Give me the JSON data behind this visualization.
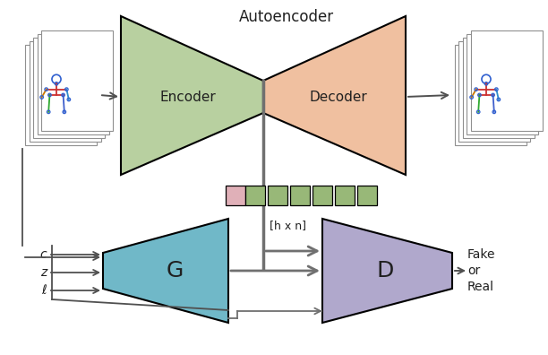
{
  "bg_color": "#ffffff",
  "autoencoder_label": "Autoencoder",
  "encoder_label": "Encoder",
  "decoder_label": "Decoder",
  "g_label": "G",
  "d_label": "D",
  "hxn_label": "[h x n]",
  "c_label": "c",
  "z_label": "z",
  "l_label": "ℓ",
  "fake_real_label": "Fake\nor\nReal",
  "encoder_color": "#b8d0a0",
  "decoder_color": "#f0c0a0",
  "g_color": "#70b8c8",
  "d_color": "#b0a8cc",
  "laten_pink_color": "#e0b0b8",
  "laten_green_color": "#98b878",
  "arrow_color": "#505050",
  "text_color": "#202020",
  "frame_color": "#909090",
  "line_color": "#707070"
}
